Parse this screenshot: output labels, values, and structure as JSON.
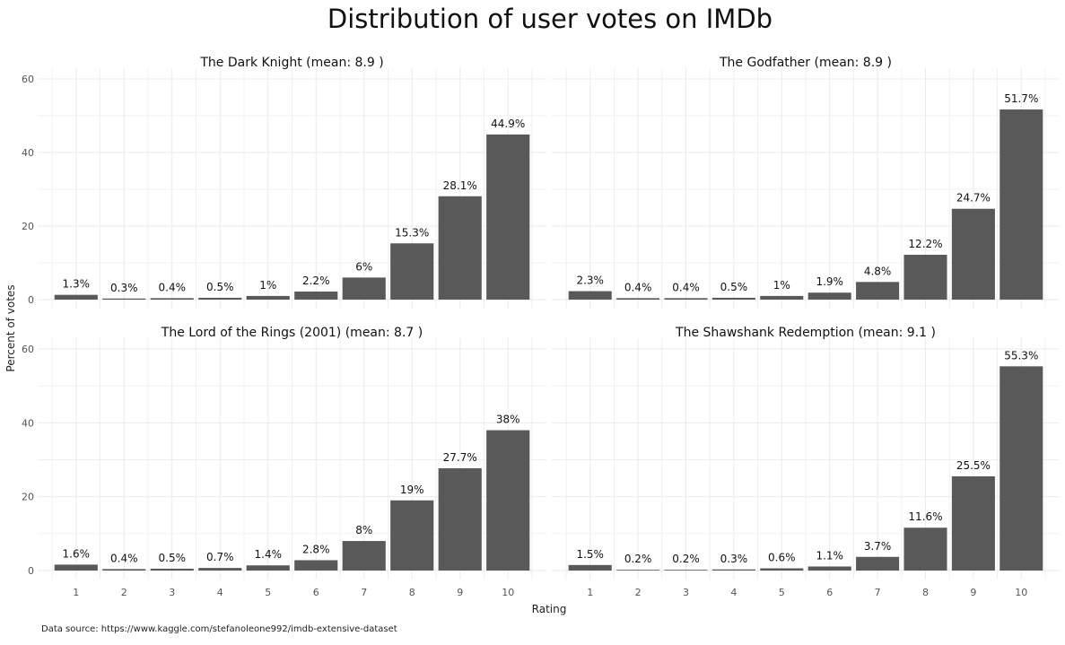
{
  "chart_data": {
    "type": "bar",
    "title": "Distribution of user votes on IMDb",
    "xlabel": "Rating",
    "ylabel": "Percent of votes",
    "caption": "Data source: https://www.kaggle.com/stefanoleone992/imdb-extensive-dataset",
    "categories": [
      "1",
      "2",
      "3",
      "4",
      "5",
      "6",
      "7",
      "8",
      "9",
      "10"
    ],
    "ylim": [
      0,
      60
    ],
    "yticks": [
      0,
      20,
      40,
      60
    ],
    "grid": true,
    "bar_color": "#595959",
    "grid_color": "#ebebeb",
    "panels": [
      {
        "title": "The Dark Knight (mean: 8.9 )",
        "values": [
          1.3,
          0.3,
          0.4,
          0.5,
          1,
          2.2,
          6,
          15.3,
          28.1,
          44.9
        ],
        "labels": [
          "1.3%",
          "0.3%",
          "0.4%",
          "0.5%",
          "1%",
          "2.2%",
          "6%",
          "15.3%",
          "28.1%",
          "44.9%"
        ]
      },
      {
        "title": "The Godfather (mean: 8.9 )",
        "values": [
          2.3,
          0.4,
          0.4,
          0.5,
          1,
          1.9,
          4.8,
          12.2,
          24.7,
          51.7
        ],
        "labels": [
          "2.3%",
          "0.4%",
          "0.4%",
          "0.5%",
          "1%",
          "1.9%",
          "4.8%",
          "12.2%",
          "24.7%",
          "51.7%"
        ]
      },
      {
        "title": "The Lord of the Rings (2001) (mean: 8.7 )",
        "values": [
          1.6,
          0.4,
          0.5,
          0.7,
          1.4,
          2.8,
          8,
          19,
          27.7,
          38
        ],
        "labels": [
          "1.6%",
          "0.4%",
          "0.5%",
          "0.7%",
          "1.4%",
          "2.8%",
          "8%",
          "19%",
          "27.7%",
          "38%"
        ]
      },
      {
        "title": "The Shawshank Redemption (mean: 9.1 )",
        "values": [
          1.5,
          0.2,
          0.2,
          0.3,
          0.6,
          1.1,
          3.7,
          11.6,
          25.5,
          55.3
        ],
        "labels": [
          "1.5%",
          "0.2%",
          "0.2%",
          "0.3%",
          "0.6%",
          "1.1%",
          "3.7%",
          "11.6%",
          "25.5%",
          "55.3%"
        ]
      }
    ]
  }
}
